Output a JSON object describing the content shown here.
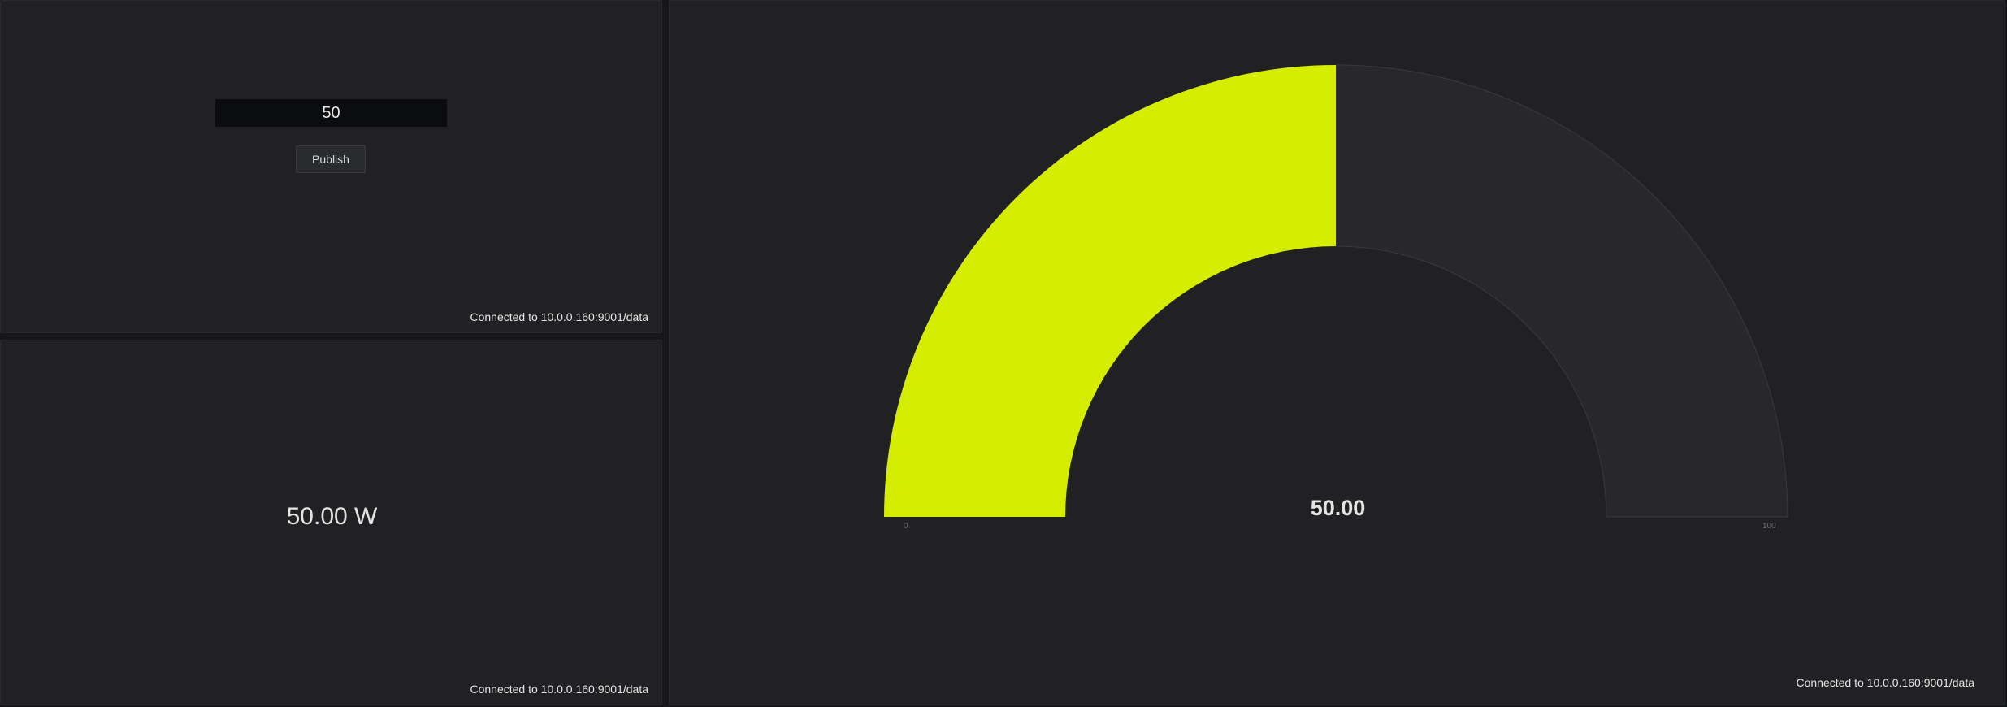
{
  "publish_panel": {
    "input_value": "50",
    "button_label": "Publish",
    "status": "Connected to 10.0.0.160:9001/data"
  },
  "stat_panel": {
    "value": "50.00 W",
    "status": "Connected to 10.0.0.160:9001/data"
  },
  "gauge_panel": {
    "value": 50,
    "value_label": "50.00",
    "min": 0,
    "max": 100,
    "min_label": "0",
    "max_label": "100",
    "status": "Connected to 10.0.0.160:9001/data"
  },
  "colors": {
    "background": "#161719",
    "panel": "#212124",
    "gauge_fill": "#d4ed00",
    "gauge_track": "#28282a",
    "input_background": "#0b0c0e"
  }
}
